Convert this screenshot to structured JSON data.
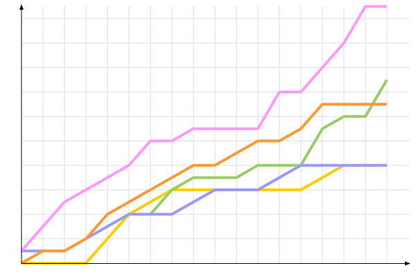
{
  "chart_data": {
    "type": "line",
    "title": "",
    "xlabel": "",
    "ylabel": "",
    "grid": true,
    "x": [
      0,
      1,
      2,
      3,
      4,
      5,
      6,
      7,
      8,
      9,
      10,
      11,
      12,
      13,
      14,
      15,
      16,
      17
    ],
    "xlim": [
      0,
      18
    ],
    "ylim": [
      0,
      10.5
    ],
    "series": [
      {
        "color": "#ffcc00",
        "values": [
          0,
          0,
          0,
          0,
          1,
          2,
          2.5,
          3,
          3,
          3,
          3,
          3,
          3,
          3,
          3.5,
          4,
          4,
          4
        ]
      },
      {
        "color": "#99cc66",
        "values": [
          null,
          null,
          null,
          null,
          null,
          null,
          2,
          3,
          3.5,
          3.5,
          3.5,
          4,
          4,
          4,
          5.5,
          6,
          6,
          7.5
        ]
      },
      {
        "color": "#9999ff",
        "values": [
          0.5,
          0.5,
          0.5,
          1,
          1.5,
          2,
          2,
          2,
          2.5,
          3,
          3,
          3,
          3.5,
          4,
          4,
          4,
          4,
          4
        ]
      },
      {
        "color": "#ff9933",
        "values": [
          0,
          0.5,
          0.5,
          1,
          2,
          2.5,
          3,
          3.5,
          4,
          4,
          4.5,
          5,
          5,
          5.5,
          6.5,
          6.5,
          6.5,
          6.5
        ]
      },
      {
        "color": "#ff99ff",
        "values": [
          0.5,
          1.5,
          2.5,
          3,
          3.5,
          4,
          5,
          5,
          5.5,
          5.5,
          5.5,
          5.5,
          7,
          7,
          8,
          9,
          10.5,
          10.5
        ]
      }
    ]
  }
}
